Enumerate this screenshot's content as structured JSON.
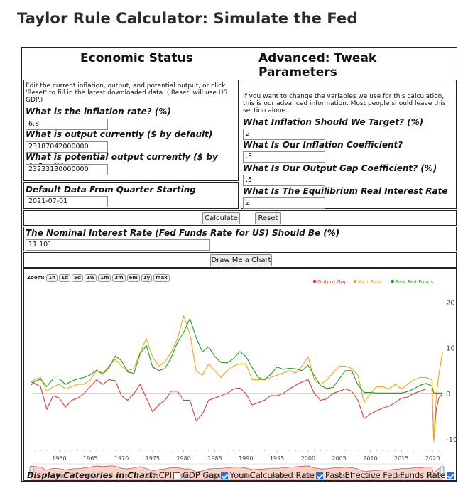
{
  "page_title": "Taylor Rule Calculator: Simulate the Fed",
  "economic_status": {
    "heading": "Economic Status",
    "intro": "Edit the current inflation, output, and potential output, or click 'Reset' to fill in the latest downloaded data. ('Reset' will use US GDP.)",
    "inflation_label": "What is the inflation rate? (%)",
    "inflation_value": "6.8",
    "output_label": "What is output currently ($ by default)",
    "output_value": "23187042000000",
    "potential_label": "What is potential output currently ($ by default)",
    "potential_value": "23233130000000",
    "default_data_label": "Default Data From Quarter Starting",
    "default_data_value": "2021-07-01"
  },
  "advanced": {
    "heading": "Advanced: Tweak Parameters",
    "intro": "If you want to change the variables we use for this calculation, this is our advanced information. Most people should leave this section alone.",
    "target_label": "What Inflation Should We Target? (%)",
    "target_value": "2",
    "inflation_coef_label": "What Is Our Inflation Coefficient?",
    "inflation_coef_value": ".5",
    "output_gap_coef_label": "What Is Our Output Gap Coefficient? (%)",
    "output_gap_coef_value": ".5",
    "real_rate_label": "What Is The Equilibrium Real Interest Rate (%)",
    "real_rate_value": "2"
  },
  "buttons": {
    "calculate": "Calculate",
    "reset": "Reset",
    "draw_chart": "Draw Me a Chart"
  },
  "result": {
    "label": "The Nominal Interest Rate (Fed Funds Rate for US) Should Be (%)",
    "value": "11.101"
  },
  "zoom": {
    "label": "Zoom:",
    "options": [
      "1h",
      "1d",
      "5d",
      "1w",
      "1m",
      "3m",
      "6m",
      "1y",
      "max"
    ]
  },
  "display_categories": {
    "label": "Display Categories in Chart:",
    "items": [
      {
        "label": "CPI",
        "checked": false
      },
      {
        "label": "GDP Gap",
        "checked": true
      },
      {
        "label": "Your Calculated Rate",
        "checked": true
      },
      {
        "label": "Past Effective Fed Funds Rate",
        "checked": true
      }
    ]
  },
  "colors": {
    "output_gap": "#d9402a",
    "your_rate": "#f5a31a",
    "past_fed_funds": "#1f9d1f"
  },
  "chart_data": {
    "type": "line",
    "x_ticks": [
      1960,
      1965,
      1970,
      1975,
      1980,
      1985,
      1990,
      1995,
      2000,
      2005,
      2010,
      2015,
      2020
    ],
    "y_ticks": [
      20,
      10,
      0,
      -10
    ],
    "ylim": [
      -12,
      21
    ],
    "xlim": [
      1955.5,
      2021.7
    ],
    "legend_position": "top-right",
    "series": [
      {
        "name": "Output Gap",
        "color": "#d9402a",
        "points": [
          [
            1955.5,
            2.5
          ],
          [
            1956,
            2.2
          ],
          [
            1957,
            1.5
          ],
          [
            1958,
            -3.5
          ],
          [
            1959,
            -0.5
          ],
          [
            1960,
            -1
          ],
          [
            1961,
            -3
          ],
          [
            1962,
            -1.5
          ],
          [
            1963,
            -1
          ],
          [
            1964,
            0
          ],
          [
            1965,
            1.5
          ],
          [
            1966,
            3
          ],
          [
            1967,
            2
          ],
          [
            1968,
            3
          ],
          [
            1969,
            2.8
          ],
          [
            1970,
            -0.5
          ],
          [
            1971,
            -1.5
          ],
          [
            1972,
            0
          ],
          [
            1973,
            2
          ],
          [
            1974,
            -1
          ],
          [
            1975,
            -4
          ],
          [
            1976,
            -2.5
          ],
          [
            1977,
            -1.5
          ],
          [
            1978,
            0.5
          ],
          [
            1979,
            0.5
          ],
          [
            1980,
            -1.5
          ],
          [
            1981,
            -1.5
          ],
          [
            1982,
            -6
          ],
          [
            1983,
            -4.5
          ],
          [
            1984,
            -1.5
          ],
          [
            1985,
            -1
          ],
          [
            1986,
            -0.5
          ],
          [
            1987,
            0
          ],
          [
            1988,
            1
          ],
          [
            1989,
            1.2
          ],
          [
            1990,
            0
          ],
          [
            1991,
            -2.5
          ],
          [
            1992,
            -2
          ],
          [
            1993,
            -1.5
          ],
          [
            1994,
            -0.5
          ],
          [
            1995,
            -0.5
          ],
          [
            1996,
            0
          ],
          [
            1997,
            1
          ],
          [
            1998,
            1.8
          ],
          [
            1999,
            2.5
          ],
          [
            2000,
            3
          ],
          [
            2001,
            0
          ],
          [
            2002,
            -1.5
          ],
          [
            2003,
            -1.2
          ],
          [
            2004,
            0
          ],
          [
            2005,
            0.5
          ],
          [
            2006,
            1
          ],
          [
            2007,
            0.5
          ],
          [
            2008,
            -1.5
          ],
          [
            2009,
            -5.5
          ],
          [
            2010,
            -4.5
          ],
          [
            2011,
            -3.8
          ],
          [
            2012,
            -3.2
          ],
          [
            2013,
            -2.8
          ],
          [
            2014,
            -2
          ],
          [
            2015,
            -1
          ],
          [
            2016,
            -0.8
          ],
          [
            2017,
            0
          ],
          [
            2018,
            0.5
          ],
          [
            2019,
            1
          ],
          [
            2019.9,
            1
          ],
          [
            2020.2,
            -10
          ],
          [
            2020.6,
            -3.5
          ],
          [
            2021,
            -1
          ],
          [
            2021.5,
            -0.2
          ]
        ]
      },
      {
        "name": "Your Rate",
        "color": "#f5a31a",
        "points": [
          [
            1955.5,
            2.5
          ],
          [
            1956,
            3
          ],
          [
            1957,
            3.5
          ],
          [
            1958,
            0.5
          ],
          [
            1959,
            1.5
          ],
          [
            1960,
            2
          ],
          [
            1961,
            1
          ],
          [
            1962,
            1.5
          ],
          [
            1963,
            2
          ],
          [
            1964,
            2
          ],
          [
            1965,
            3
          ],
          [
            1966,
            5
          ],
          [
            1967,
            4.5
          ],
          [
            1968,
            6
          ],
          [
            1969,
            7.5
          ],
          [
            1970,
            6
          ],
          [
            1971,
            5
          ],
          [
            1972,
            5.5
          ],
          [
            1973,
            9
          ],
          [
            1974,
            12
          ],
          [
            1975,
            8
          ],
          [
            1976,
            6
          ],
          [
            1977,
            7
          ],
          [
            1978,
            9
          ],
          [
            1979,
            12
          ],
          [
            1980,
            17
          ],
          [
            1981,
            13
          ],
          [
            1982,
            5
          ],
          [
            1983,
            4
          ],
          [
            1984,
            6.5
          ],
          [
            1985,
            5
          ],
          [
            1986,
            3.5
          ],
          [
            1987,
            5
          ],
          [
            1988,
            6
          ],
          [
            1989,
            6.5
          ],
          [
            1990,
            6.5
          ],
          [
            1991,
            3
          ],
          [
            1992,
            3
          ],
          [
            1993,
            3
          ],
          [
            1994,
            3.5
          ],
          [
            1995,
            4
          ],
          [
            1996,
            4.5
          ],
          [
            1997,
            5
          ],
          [
            1998,
            4.5
          ],
          [
            1999,
            6
          ],
          [
            2000,
            8
          ],
          [
            2001,
            3
          ],
          [
            2002,
            2
          ],
          [
            2003,
            3
          ],
          [
            2004,
            4.5
          ],
          [
            2005,
            6
          ],
          [
            2006,
            6
          ],
          [
            2007,
            5.5
          ],
          [
            2008,
            4
          ],
          [
            2009,
            -2
          ],
          [
            2010,
            0
          ],
          [
            2011,
            1.5
          ],
          [
            2012,
            1.5
          ],
          [
            2013,
            1
          ],
          [
            2014,
            2
          ],
          [
            2015,
            1
          ],
          [
            2016,
            2
          ],
          [
            2017,
            3
          ],
          [
            2018,
            3.5
          ],
          [
            2019,
            3.5
          ],
          [
            2019.9,
            3
          ],
          [
            2020.2,
            -10.5
          ],
          [
            2020.6,
            -0.5
          ],
          [
            2021,
            4
          ],
          [
            2021.6,
            9
          ]
        ]
      },
      {
        "name": "Past Fed Funds",
        "color": "#1f9d1f",
        "points": [
          [
            1955.5,
            1.8
          ],
          [
            1956,
            2.6
          ],
          [
            1957,
            3.1
          ],
          [
            1958,
            1.5
          ],
          [
            1959,
            3.2
          ],
          [
            1960,
            3.2
          ],
          [
            1961,
            2
          ],
          [
            1962,
            2.7
          ],
          [
            1963,
            3.2
          ],
          [
            1964,
            3.5
          ],
          [
            1965,
            4.1
          ],
          [
            1966,
            5.1
          ],
          [
            1967,
            4.2
          ],
          [
            1968,
            5.7
          ],
          [
            1969,
            8.2
          ],
          [
            1970,
            7.2
          ],
          [
            1971,
            4.7
          ],
          [
            1972,
            4.4
          ],
          [
            1973,
            8.7
          ],
          [
            1974,
            10.5
          ],
          [
            1975,
            5.8
          ],
          [
            1976,
            5
          ],
          [
            1977,
            5.5
          ],
          [
            1978,
            7.9
          ],
          [
            1979,
            11.2
          ],
          [
            1980,
            13.4
          ],
          [
            1981,
            16.4
          ],
          [
            1982,
            12.2
          ],
          [
            1983,
            9.1
          ],
          [
            1984,
            10.2
          ],
          [
            1985,
            8.1
          ],
          [
            1986,
            6.8
          ],
          [
            1987,
            6.7
          ],
          [
            1988,
            7.6
          ],
          [
            1989,
            9.2
          ],
          [
            1990,
            8.1
          ],
          [
            1991,
            5.7
          ],
          [
            1992,
            3.5
          ],
          [
            1993,
            3
          ],
          [
            1994,
            4.2
          ],
          [
            1995,
            5.8
          ],
          [
            1996,
            5.3
          ],
          [
            1997,
            5.5
          ],
          [
            1998,
            5.4
          ],
          [
            1999,
            5
          ],
          [
            2000,
            6.2
          ],
          [
            2001,
            3.9
          ],
          [
            2002,
            1.7
          ],
          [
            2003,
            1.1
          ],
          [
            2004,
            1.3
          ],
          [
            2005,
            3.2
          ],
          [
            2006,
            5
          ],
          [
            2007,
            5
          ],
          [
            2008,
            1.9
          ],
          [
            2009,
            0.2
          ],
          [
            2010,
            0.2
          ],
          [
            2011,
            0.1
          ],
          [
            2012,
            0.1
          ],
          [
            2013,
            0.1
          ],
          [
            2014,
            0.1
          ],
          [
            2015,
            0.1
          ],
          [
            2016,
            0.4
          ],
          [
            2017,
            1
          ],
          [
            2018,
            1.8
          ],
          [
            2019,
            2.2
          ],
          [
            2019.9,
            1.6
          ],
          [
            2020.2,
            0.1
          ],
          [
            2021,
            0.1
          ],
          [
            2021.6,
            0.1
          ]
        ]
      }
    ]
  }
}
